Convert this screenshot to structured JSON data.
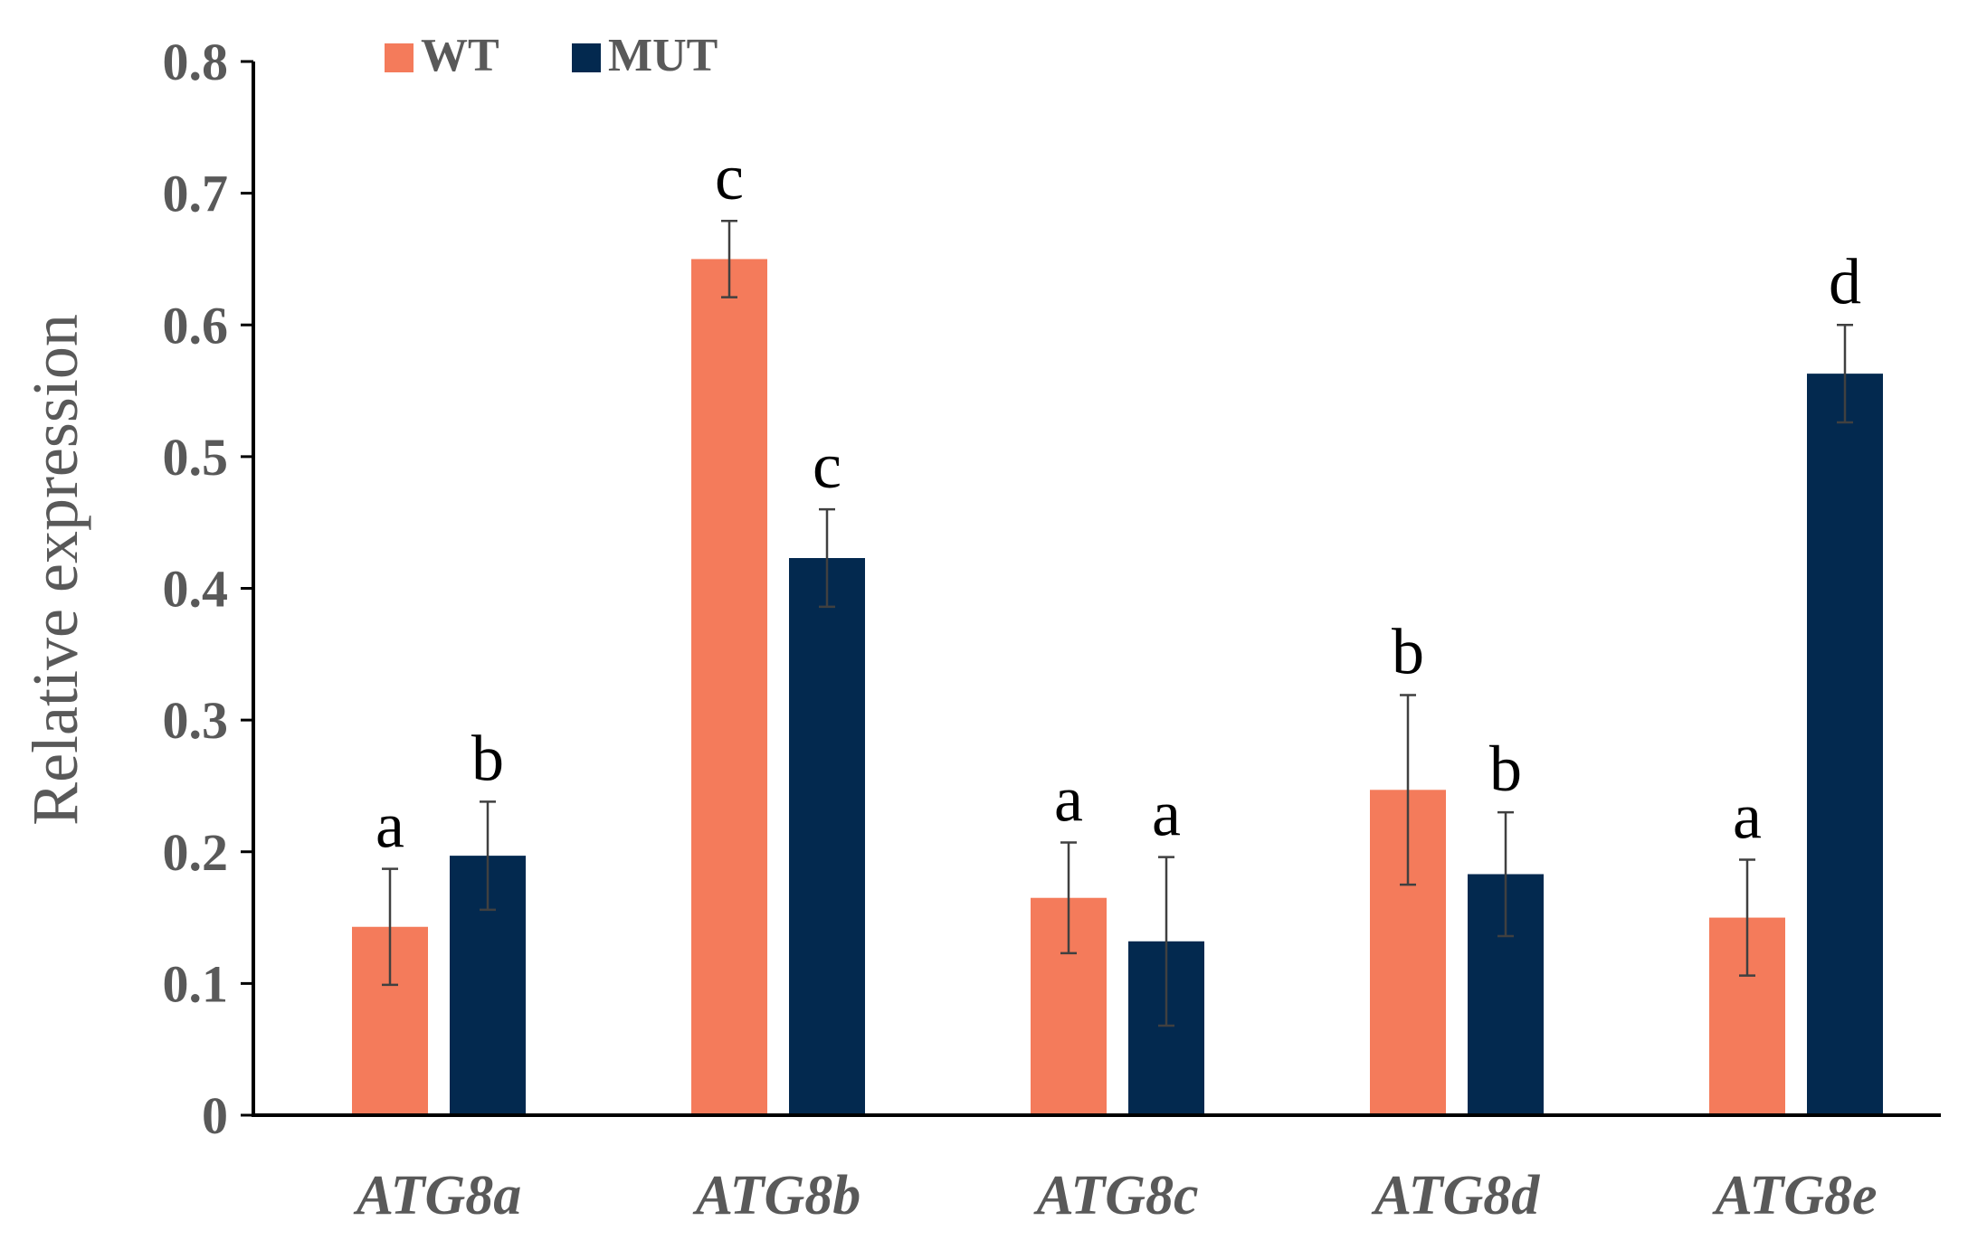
{
  "chart_data": {
    "type": "bar",
    "title": "",
    "xlabel": "",
    "ylabel": "Relative expression",
    "ylim": [
      0,
      0.8
    ],
    "yticks": [
      "0",
      "0.1",
      "0.2",
      "0.3",
      "0.4",
      "0.5",
      "0.6",
      "0.7",
      "0.8"
    ],
    "grid": false,
    "legend_position": "top-left",
    "categories": [
      "ATG8a",
      "ATG8b",
      "ATG8c",
      "ATG8d",
      "ATG8e"
    ],
    "series": [
      {
        "name": "WT",
        "color": "#F47B5B",
        "values": [
          0.143,
          0.65,
          0.165,
          0.247,
          0.15
        ],
        "errors": [
          0.044,
          0.029,
          0.042,
          0.072,
          0.044
        ],
        "labels": [
          "a",
          "c",
          "a",
          "b",
          "a"
        ]
      },
      {
        "name": "MUT",
        "color": "#03294F",
        "values": [
          0.197,
          0.423,
          0.132,
          0.183,
          0.563
        ],
        "errors": [
          0.041,
          0.037,
          0.064,
          0.047,
          0.037
        ],
        "labels": [
          "b",
          "c",
          "a",
          "b",
          "d"
        ]
      }
    ]
  }
}
